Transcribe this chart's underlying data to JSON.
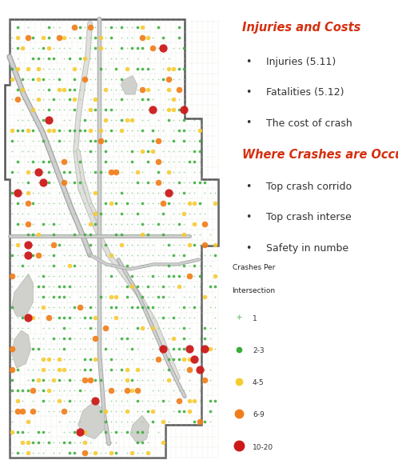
{
  "legend_title_line1": "Crashes Per",
  "legend_title_line2": "Intersection",
  "legend_items": [
    {
      "label": "1",
      "color": "#7ec87e",
      "size": 3,
      "marker": "+"
    },
    {
      "label": "2-3",
      "color": "#3aad3a",
      "size": 7,
      "marker": "o"
    },
    {
      "label": "4-5",
      "color": "#f5cb30",
      "size": 12,
      "marker": "o"
    },
    {
      "label": "6-9",
      "color": "#f07e1a",
      "size": 18,
      "marker": "o"
    },
    {
      "label": "10-20",
      "color": "#cc1a1a",
      "size": 28,
      "marker": "o"
    }
  ],
  "right_title1": "Injuries and Costs",
  "right_bullets1": [
    "Injuries (5.11)",
    "Fatalities (5.12)",
    "The cost of crash"
  ],
  "right_title2": "Where Crashes are Occurr",
  "right_bullets2": [
    "Top crash corrido",
    "Top crash interse",
    "Safety in numbe"
  ],
  "map_facecolor": "#ffffff",
  "city_fill": "#ffffff",
  "city_edge": "#555555",
  "grid_color": "#d8d8d8",
  "road_color_outer": "#b0b0b0",
  "road_color_inner": "#d8d8d8",
  "lake_color": "#d8d8d8",
  "dot_green_small": "#8fca8f",
  "dot_green": "#3aad3a",
  "dot_yellow": "#f5cb30",
  "dot_orange": "#f07e1a",
  "dot_red": "#cc1a1a"
}
